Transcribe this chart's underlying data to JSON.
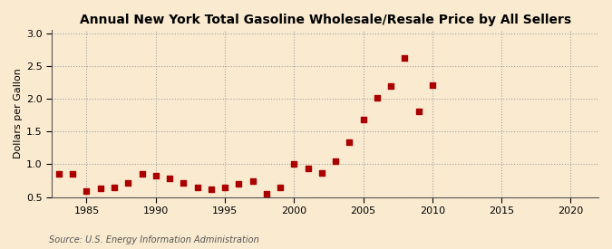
{
  "title": "Annual New York Total Gasoline Wholesale/Resale Price by All Sellers",
  "ylabel": "Dollars per Gallon",
  "source": "Source: U.S. Energy Information Administration",
  "years": [
    1983,
    1984,
    1985,
    1986,
    1987,
    1988,
    1989,
    1990,
    1991,
    1992,
    1993,
    1994,
    1995,
    1996,
    1997,
    1998,
    1999,
    2000,
    2001,
    2002,
    2003,
    2004,
    2005,
    2006,
    2007,
    2008,
    2009,
    2010
  ],
  "values": [
    0.86,
    0.86,
    0.59,
    0.63,
    0.64,
    0.72,
    0.85,
    0.83,
    0.78,
    0.72,
    0.65,
    0.62,
    0.65,
    0.7,
    0.74,
    0.55,
    0.65,
    1.0,
    0.93,
    0.87,
    1.05,
    1.33,
    1.68,
    2.01,
    2.19,
    2.62,
    1.81,
    2.2
  ],
  "marker_color": "#aa0000",
  "marker_size": 16,
  "bg_color": "#faebd0",
  "grid_color": "#999999",
  "xlim": [
    1982.5,
    2022
  ],
  "ylim": [
    0.5,
    3.05
  ],
  "xticks": [
    1985,
    1990,
    1995,
    2000,
    2005,
    2010,
    2015,
    2020
  ],
  "yticks": [
    0.5,
    1.0,
    1.5,
    2.0,
    2.5,
    3.0
  ],
  "title_fontsize": 10,
  "label_fontsize": 8,
  "tick_fontsize": 8,
  "source_fontsize": 7
}
